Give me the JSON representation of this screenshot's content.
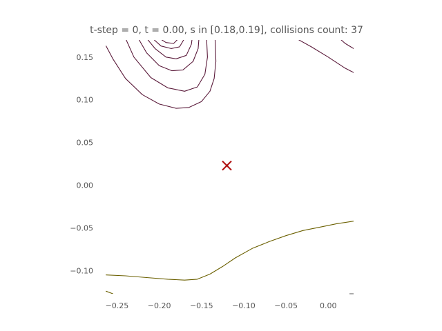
{
  "chart_data": {
    "type": "line",
    "title": "t-step = 0, t = 0.00, s in [0.18,0.19], collisions count: 37",
    "xlabel": "",
    "ylabel": "",
    "xlim": [
      -0.27,
      0.03
    ],
    "ylim": [
      -0.127,
      0.17
    ],
    "grid": false,
    "x_ticks": [
      -0.25,
      -0.2,
      -0.15,
      -0.1,
      -0.05,
      0.0
    ],
    "x_tick_labels": [
      "−0.25",
      "−0.20",
      "−0.15",
      "−0.10",
      "−0.05",
      "0.00"
    ],
    "y_ticks": [
      0.15,
      0.1,
      0.05,
      0.0,
      -0.05,
      -0.1
    ],
    "y_tick_labels": [
      "0.15",
      "0.10",
      "0.05",
      "0.00",
      "−0.05",
      "−0.10"
    ],
    "marker": {
      "x": -0.12,
      "y": 0.023,
      "symbol": "x",
      "color": "#b01010"
    },
    "contours": [
      {
        "color": "#5a1a3a",
        "points": [
          [
            -0.263,
            0.163
          ],
          [
            -0.255,
            0.148
          ],
          [
            -0.24,
            0.125
          ],
          [
            -0.22,
            0.106
          ],
          [
            -0.2,
            0.095
          ],
          [
            -0.18,
            0.09
          ],
          [
            -0.165,
            0.091
          ],
          [
            -0.15,
            0.098
          ],
          [
            -0.14,
            0.11
          ],
          [
            -0.135,
            0.125
          ],
          [
            -0.133,
            0.145
          ],
          [
            -0.134,
            0.172
          ]
        ]
      },
      {
        "color": "#5a1a3a",
        "points": [
          [
            -0.24,
            0.172
          ],
          [
            -0.23,
            0.15
          ],
          [
            -0.21,
            0.126
          ],
          [
            -0.19,
            0.114
          ],
          [
            -0.17,
            0.11
          ],
          [
            -0.155,
            0.115
          ],
          [
            -0.146,
            0.13
          ],
          [
            -0.143,
            0.15
          ],
          [
            -0.144,
            0.172
          ]
        ]
      },
      {
        "color": "#5a1a3a",
        "points": [
          [
            -0.225,
            0.172
          ],
          [
            -0.215,
            0.155
          ],
          [
            -0.2,
            0.14
          ],
          [
            -0.185,
            0.134
          ],
          [
            -0.172,
            0.135
          ],
          [
            -0.16,
            0.145
          ],
          [
            -0.154,
            0.16
          ],
          [
            -0.153,
            0.172
          ]
        ]
      },
      {
        "color": "#5a1a3a",
        "points": [
          [
            -0.215,
            0.172
          ],
          [
            -0.205,
            0.16
          ],
          [
            -0.192,
            0.15
          ],
          [
            -0.18,
            0.148
          ],
          [
            -0.168,
            0.152
          ],
          [
            -0.162,
            0.165
          ],
          [
            -0.161,
            0.172
          ]
        ]
      },
      {
        "color": "#5a1a3a",
        "points": [
          [
            -0.208,
            0.172
          ],
          [
            -0.198,
            0.163
          ],
          [
            -0.186,
            0.16
          ],
          [
            -0.176,
            0.162
          ],
          [
            -0.17,
            0.172
          ]
        ]
      },
      {
        "color": "#5a1a3a",
        "points": [
          [
            -0.2,
            0.172
          ],
          [
            -0.192,
            0.167
          ],
          [
            -0.183,
            0.166
          ],
          [
            -0.177,
            0.172
          ]
        ]
      },
      {
        "color": "#5a1a3a",
        "points": [
          [
            -0.04,
            0.173
          ],
          [
            -0.02,
            0.162
          ],
          [
            0.0,
            0.15
          ],
          [
            0.02,
            0.137
          ],
          [
            0.03,
            0.132
          ]
        ]
      },
      {
        "color": "#5a1a3a",
        "points": [
          [
            0.012,
            0.173
          ],
          [
            0.02,
            0.166
          ],
          [
            0.03,
            0.16
          ]
        ]
      },
      {
        "color": "#6b6000",
        "points": [
          [
            -0.263,
            -0.105
          ],
          [
            -0.24,
            -0.106
          ],
          [
            -0.215,
            -0.108
          ],
          [
            -0.19,
            -0.11
          ],
          [
            -0.17,
            -0.111
          ],
          [
            -0.155,
            -0.11
          ],
          [
            -0.14,
            -0.104
          ],
          [
            -0.125,
            -0.095
          ],
          [
            -0.11,
            -0.085
          ],
          [
            -0.09,
            -0.074
          ],
          [
            -0.07,
            -0.066
          ],
          [
            -0.05,
            -0.059
          ],
          [
            -0.03,
            -0.053
          ],
          [
            -0.01,
            -0.049
          ],
          [
            0.01,
            -0.045
          ],
          [
            0.03,
            -0.042
          ]
        ]
      },
      {
        "color": "#6b6000",
        "points": [
          [
            -0.263,
            -0.124
          ],
          [
            -0.255,
            -0.127
          ]
        ]
      }
    ]
  }
}
